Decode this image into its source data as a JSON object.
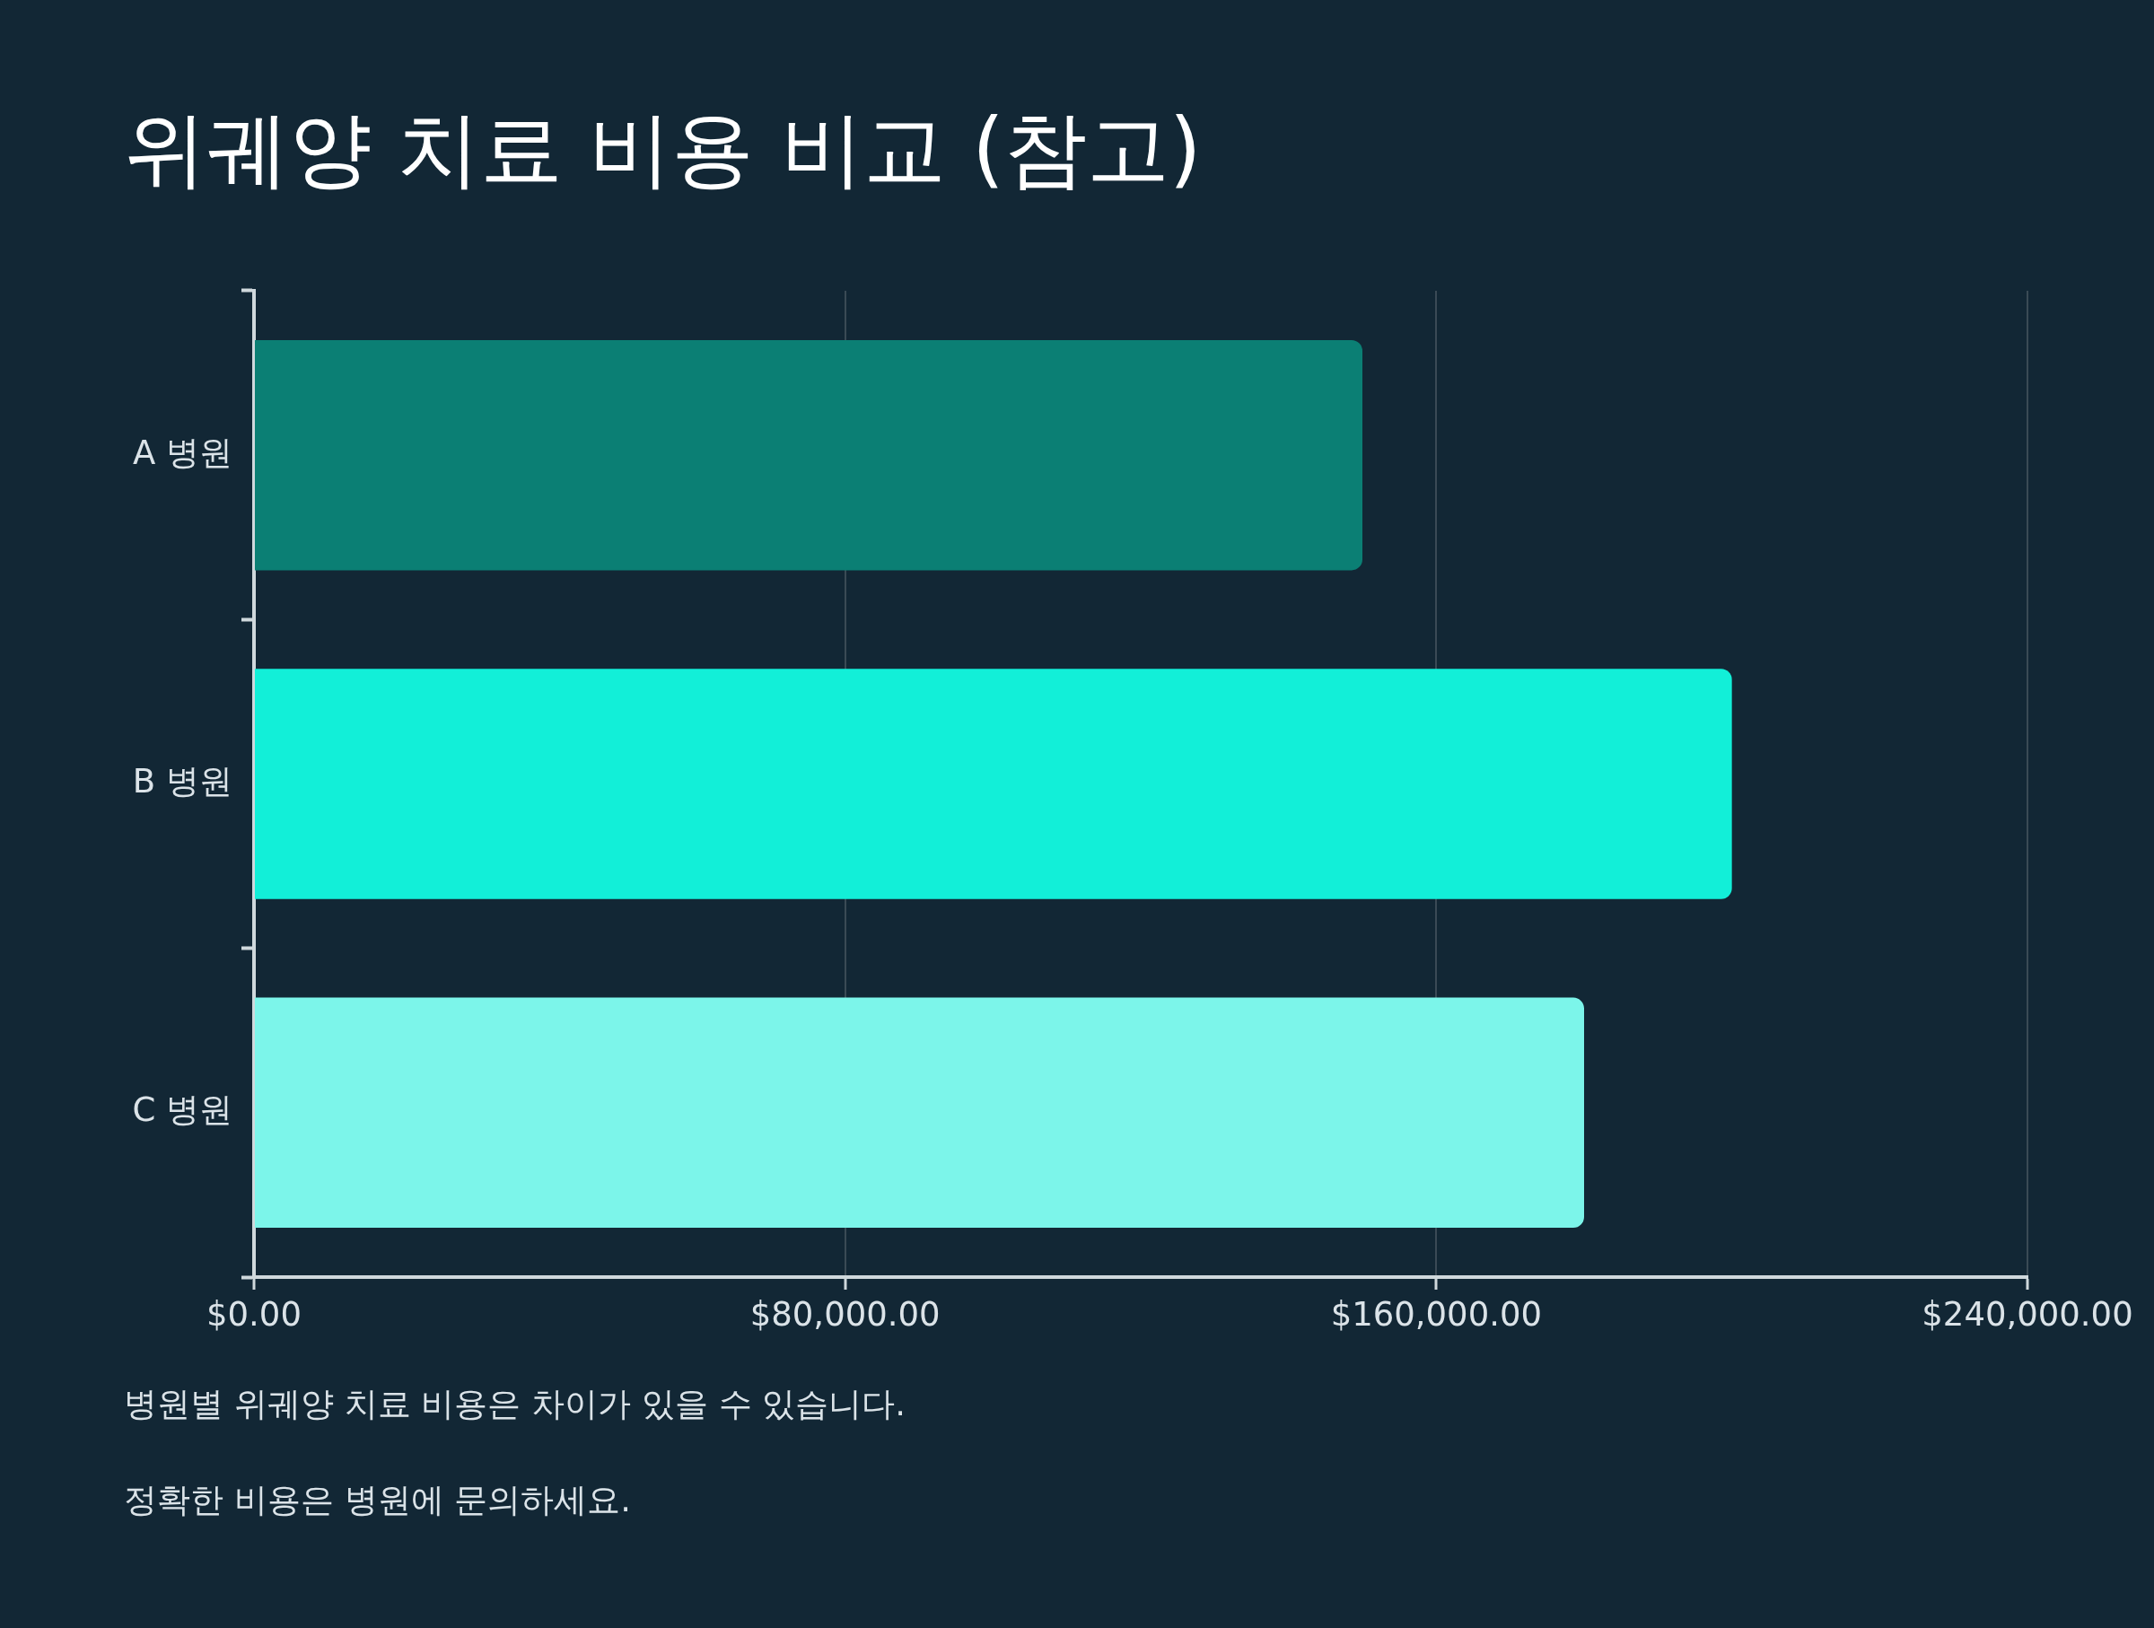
{
  "chart_data": {
    "type": "bar",
    "orientation": "horizontal",
    "title": "위궤양 치료 비용 비교 (참고)",
    "categories": [
      "A 병원",
      "B 병원",
      "C 병원"
    ],
    "values": [
      150000,
      200000,
      180000
    ],
    "colors": [
      "#0b7f74",
      "#12efd8",
      "#7cf5ea"
    ],
    "xlim": [
      0,
      240000
    ],
    "xticks": [
      {
        "value": 0,
        "label": "$0.00"
      },
      {
        "value": 80000,
        "label": "$80,000.00"
      },
      {
        "value": 160000,
        "label": "$160,000.00"
      },
      {
        "value": 240000,
        "label": "$240,000.00"
      }
    ],
    "grid": "x",
    "annotations": [
      "병원별 위궤양 치료 비용은 차이가 있을 수 있습니다.",
      "정확한 비용은 병원에 문의하세요."
    ]
  }
}
